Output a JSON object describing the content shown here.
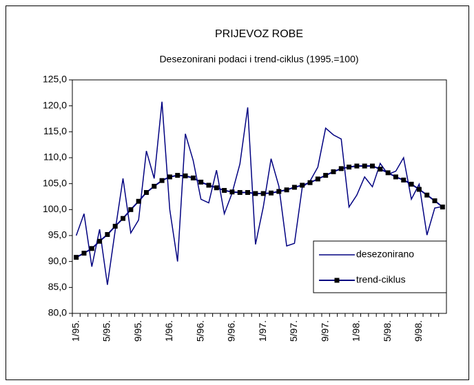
{
  "chart_data": {
    "type": "line",
    "title": "PRIJEVOZ ROBE",
    "subtitle": "Desezonirani podaci i trend-ciklus (1995.=100)",
    "categories": [
      "1/95.",
      null,
      null,
      null,
      "5/95.",
      null,
      null,
      null,
      "9/95.",
      null,
      null,
      null,
      "1/96.",
      null,
      null,
      null,
      "5/96.",
      null,
      null,
      null,
      "9/96.",
      null,
      null,
      null,
      "1/97.",
      null,
      null,
      null,
      "5/97.",
      null,
      null,
      null,
      "9/97.",
      null,
      null,
      null,
      "1/98.",
      null,
      null,
      null,
      "5/98.",
      null,
      null,
      null,
      "9/98.",
      null,
      null,
      null
    ],
    "series": [
      {
        "name": "desezonirano",
        "color": "#000080",
        "marker": false,
        "values": [
          95.0,
          99.2,
          89.0,
          96.2,
          85.5,
          96.0,
          106.0,
          95.5,
          98.0,
          111.3,
          106.0,
          120.8,
          100.0,
          90.0,
          114.6,
          109.5,
          102.0,
          101.3,
          107.6,
          99.2,
          103.2,
          108.8,
          119.7,
          93.3,
          100.5,
          109.8,
          104.5,
          93.0,
          93.5,
          104.3,
          105.5,
          108.2,
          115.7,
          114.4,
          113.6,
          100.5,
          102.8,
          106.3,
          104.4,
          108.9,
          106.8,
          107.4,
          110.0,
          102.0,
          104.9,
          95.1,
          100.3,
          100.6
        ]
      },
      {
        "name": "trend-ciklus",
        "color": "#000080",
        "marker": true,
        "values": [
          90.8,
          91.6,
          92.5,
          93.9,
          95.2,
          96.8,
          98.3,
          100.0,
          101.6,
          103.3,
          104.5,
          105.6,
          106.3,
          106.6,
          106.5,
          106.1,
          105.3,
          104.7,
          104.2,
          103.7,
          103.4,
          103.3,
          103.3,
          103.1,
          103.1,
          103.2,
          103.5,
          103.8,
          104.3,
          104.7,
          105.2,
          105.9,
          106.6,
          107.3,
          107.9,
          108.2,
          108.4,
          108.4,
          108.4,
          107.8,
          107.1,
          106.3,
          105.7,
          104.9,
          103.9,
          102.8,
          101.7,
          100.5
        ]
      }
    ],
    "ylim": [
      80,
      125
    ],
    "yticks": [
      {
        "value": 80,
        "label": "80,0"
      },
      {
        "value": 85,
        "label": "85,0"
      },
      {
        "value": 90,
        "label": "90,0"
      },
      {
        "value": 95,
        "label": "95,0"
      },
      {
        "value": 100,
        "label": "100,0"
      },
      {
        "value": 105,
        "label": "105,0"
      },
      {
        "value": 110,
        "label": "110,0"
      },
      {
        "value": 115,
        "label": "115,0"
      },
      {
        "value": 120,
        "label": "120,0"
      },
      {
        "value": 125,
        "label": "125,0"
      }
    ],
    "grid": false,
    "legend": "lower right"
  }
}
